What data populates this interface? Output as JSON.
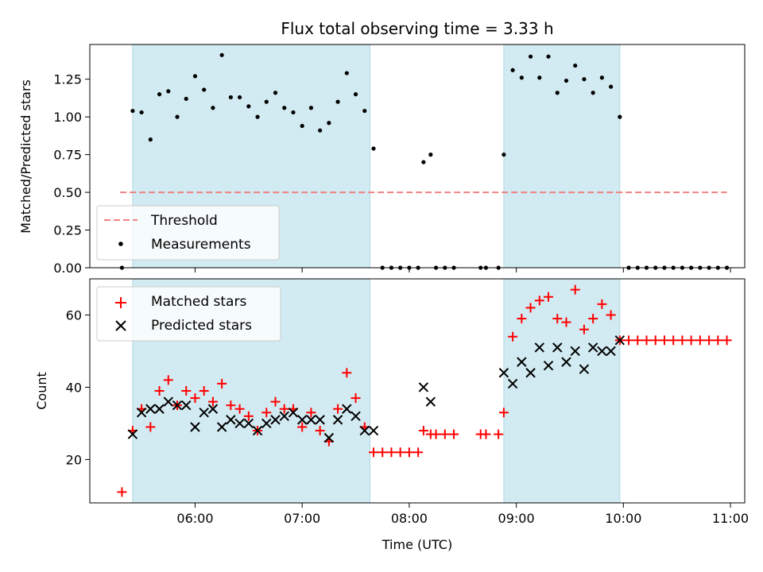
{
  "chart_data": [
    {
      "type": "scatter",
      "title": "Flux total observing time = 3.33 h",
      "xlabel": "",
      "ylabel": "Matched/Predicted stars",
      "ylim": [
        0.0,
        1.48
      ],
      "yticks": [
        "0.00",
        "0.25",
        "0.50",
        "0.75",
        "1.00",
        "1.25"
      ],
      "ytick_values": [
        0.0,
        0.25,
        0.5,
        0.75,
        1.0,
        1.25
      ],
      "threshold": {
        "name": "Threshold",
        "y": 0.5,
        "x_start": "05:18",
        "x_end": "10:58",
        "color": "#f08080"
      },
      "shaded_intervals": [
        [
          "05:25",
          "07:38"
        ],
        [
          "08:53",
          "09:58"
        ]
      ],
      "shade_color": "#add8e6",
      "legend_position": "lower-left",
      "series": [
        {
          "name": "Measurements",
          "marker": "dot",
          "color": "#000000",
          "points": [
            [
              "05:19",
              0.0
            ],
            [
              "05:25",
              1.04
            ],
            [
              "05:30",
              1.03
            ],
            [
              "05:35",
              0.85
            ],
            [
              "05:40",
              1.15
            ],
            [
              "05:45",
              1.17
            ],
            [
              "05:50",
              1.0
            ],
            [
              "05:55",
              1.12
            ],
            [
              "06:00",
              1.27
            ],
            [
              "06:05",
              1.18
            ],
            [
              "06:10",
              1.06
            ],
            [
              "06:15",
              1.41
            ],
            [
              "06:20",
              1.13
            ],
            [
              "06:25",
              1.13
            ],
            [
              "06:30",
              1.07
            ],
            [
              "06:35",
              1.0
            ],
            [
              "06:40",
              1.1
            ],
            [
              "06:45",
              1.16
            ],
            [
              "06:50",
              1.06
            ],
            [
              "06:55",
              1.03
            ],
            [
              "07:00",
              0.94
            ],
            [
              "07:05",
              1.06
            ],
            [
              "07:10",
              0.91
            ],
            [
              "07:15",
              0.96
            ],
            [
              "07:20",
              1.1
            ],
            [
              "07:25",
              1.29
            ],
            [
              "07:30",
              1.15
            ],
            [
              "07:35",
              1.04
            ],
            [
              "07:40",
              0.79
            ],
            [
              "07:45",
              0.0
            ],
            [
              "07:50",
              0.0
            ],
            [
              "07:55",
              0.0
            ],
            [
              "08:00",
              0.0
            ],
            [
              "08:05",
              0.0
            ],
            [
              "08:08",
              0.7
            ],
            [
              "08:12",
              0.75
            ],
            [
              "08:15",
              0.0
            ],
            [
              "08:20",
              0.0
            ],
            [
              "08:25",
              0.0
            ],
            [
              "08:40",
              0.0
            ],
            [
              "08:43",
              0.0
            ],
            [
              "08:50",
              0.0
            ],
            [
              "08:53",
              0.75
            ],
            [
              "08:58",
              1.31
            ],
            [
              "09:03",
              1.26
            ],
            [
              "09:08",
              1.4
            ],
            [
              "09:13",
              1.26
            ],
            [
              "09:18",
              1.4
            ],
            [
              "09:23",
              1.16
            ],
            [
              "09:28",
              1.24
            ],
            [
              "09:33",
              1.34
            ],
            [
              "09:38",
              1.25
            ],
            [
              "09:43",
              1.16
            ],
            [
              "09:48",
              1.26
            ],
            [
              "09:53",
              1.2
            ],
            [
              "09:58",
              1.0
            ],
            [
              "10:03",
              0.0
            ],
            [
              "10:08",
              0.0
            ],
            [
              "10:13",
              0.0
            ],
            [
              "10:18",
              0.0
            ],
            [
              "10:23",
              0.0
            ],
            [
              "10:28",
              0.0
            ],
            [
              "10:33",
              0.0
            ],
            [
              "10:38",
              0.0
            ],
            [
              "10:43",
              0.0
            ],
            [
              "10:48",
              0.0
            ],
            [
              "10:53",
              0.0
            ],
            [
              "10:58",
              0.0
            ]
          ]
        }
      ]
    },
    {
      "type": "scatter",
      "title": "",
      "xlabel": "Time (UTC)",
      "ylabel": "Count",
      "ylim": [
        8,
        70
      ],
      "yticks": [
        "20",
        "40",
        "60"
      ],
      "ytick_values": [
        20,
        40,
        60
      ],
      "xticks": [
        "06:00",
        "07:00",
        "08:00",
        "09:00",
        "10:00",
        "11:00"
      ],
      "xlim": [
        "05:01",
        "11:08"
      ],
      "shaded_intervals": [
        [
          "05:25",
          "07:38"
        ],
        [
          "08:53",
          "09:58"
        ]
      ],
      "shade_color": "#add8e6",
      "legend_position": "upper-left",
      "series": [
        {
          "name": "Matched stars",
          "marker": "plus",
          "color": "#ff0000",
          "points": [
            [
              "05:19",
              11
            ],
            [
              "05:25",
              28
            ],
            [
              "05:30",
              34
            ],
            [
              "05:35",
              29
            ],
            [
              "05:40",
              39
            ],
            [
              "05:45",
              42
            ],
            [
              "05:50",
              35
            ],
            [
              "05:55",
              39
            ],
            [
              "06:00",
              37
            ],
            [
              "06:05",
              39
            ],
            [
              "06:10",
              36
            ],
            [
              "06:15",
              41
            ],
            [
              "06:20",
              35
            ],
            [
              "06:25",
              34
            ],
            [
              "06:30",
              32
            ],
            [
              "06:35",
              28
            ],
            [
              "06:40",
              33
            ],
            [
              "06:45",
              36
            ],
            [
              "06:50",
              34
            ],
            [
              "06:55",
              34
            ],
            [
              "07:00",
              29
            ],
            [
              "07:05",
              33
            ],
            [
              "07:10",
              28
            ],
            [
              "07:15",
              25
            ],
            [
              "07:20",
              34
            ],
            [
              "07:25",
              44
            ],
            [
              "07:30",
              37
            ],
            [
              "07:35",
              29
            ],
            [
              "07:40",
              22
            ],
            [
              "07:45",
              22
            ],
            [
              "07:50",
              22
            ],
            [
              "07:55",
              22
            ],
            [
              "08:00",
              22
            ],
            [
              "08:05",
              22
            ],
            [
              "08:08",
              28
            ],
            [
              "08:12",
              27
            ],
            [
              "08:15",
              27
            ],
            [
              "08:20",
              27
            ],
            [
              "08:25",
              27
            ],
            [
              "08:40",
              27
            ],
            [
              "08:43",
              27
            ],
            [
              "08:50",
              27
            ],
            [
              "08:53",
              33
            ],
            [
              "08:58",
              54
            ],
            [
              "09:03",
              59
            ],
            [
              "09:08",
              62
            ],
            [
              "09:13",
              64
            ],
            [
              "09:18",
              65
            ],
            [
              "09:23",
              59
            ],
            [
              "09:28",
              58
            ],
            [
              "09:33",
              67
            ],
            [
              "09:38",
              56
            ],
            [
              "09:43",
              59
            ],
            [
              "09:48",
              63
            ],
            [
              "09:53",
              60
            ],
            [
              "09:58",
              53
            ],
            [
              "10:03",
              53
            ],
            [
              "10:08",
              53
            ],
            [
              "10:13",
              53
            ],
            [
              "10:18",
              53
            ],
            [
              "10:23",
              53
            ],
            [
              "10:28",
              53
            ],
            [
              "10:33",
              53
            ],
            [
              "10:38",
              53
            ],
            [
              "10:43",
              53
            ],
            [
              "10:48",
              53
            ],
            [
              "10:53",
              53
            ],
            [
              "10:58",
              53
            ]
          ]
        },
        {
          "name": "Predicted stars",
          "marker": "x",
          "color": "#000000",
          "points": [
            [
              "05:25",
              27
            ],
            [
              "05:30",
              33
            ],
            [
              "05:35",
              34
            ],
            [
              "05:40",
              34
            ],
            [
              "05:45",
              36
            ],
            [
              "05:50",
              35
            ],
            [
              "05:55",
              35
            ],
            [
              "06:00",
              29
            ],
            [
              "06:05",
              33
            ],
            [
              "06:10",
              34
            ],
            [
              "06:15",
              29
            ],
            [
              "06:20",
              31
            ],
            [
              "06:25",
              30
            ],
            [
              "06:30",
              30
            ],
            [
              "06:35",
              28
            ],
            [
              "06:40",
              30
            ],
            [
              "06:45",
              31
            ],
            [
              "06:50",
              32
            ],
            [
              "06:55",
              33
            ],
            [
              "07:00",
              31
            ],
            [
              "07:05",
              31
            ],
            [
              "07:10",
              31
            ],
            [
              "07:15",
              26
            ],
            [
              "07:20",
              31
            ],
            [
              "07:25",
              34
            ],
            [
              "07:30",
              32
            ],
            [
              "07:35",
              28
            ],
            [
              "07:40",
              28
            ],
            [
              "08:08",
              40
            ],
            [
              "08:12",
              36
            ],
            [
              "08:53",
              44
            ],
            [
              "08:58",
              41
            ],
            [
              "09:03",
              47
            ],
            [
              "09:08",
              44
            ],
            [
              "09:13",
              51
            ],
            [
              "09:18",
              46
            ],
            [
              "09:23",
              51
            ],
            [
              "09:28",
              47
            ],
            [
              "09:33",
              50
            ],
            [
              "09:38",
              45
            ],
            [
              "09:43",
              51
            ],
            [
              "09:48",
              50
            ],
            [
              "09:53",
              50
            ],
            [
              "09:58",
              53
            ]
          ]
        }
      ]
    }
  ]
}
